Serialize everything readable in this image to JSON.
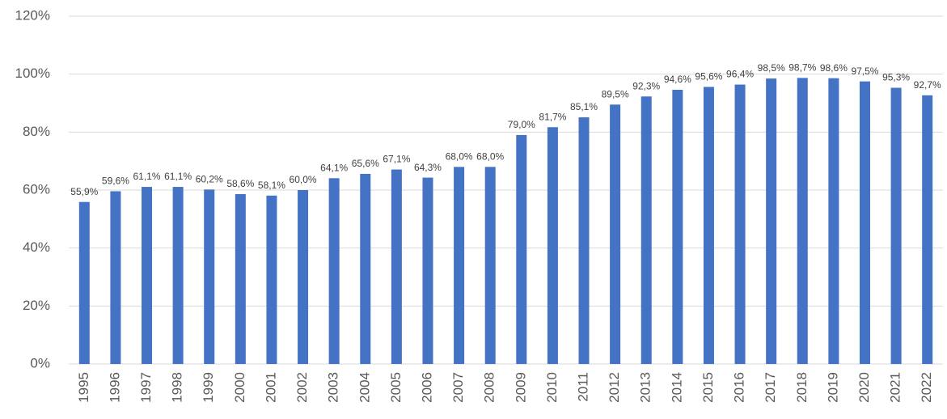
{
  "chart_data": {
    "type": "bar",
    "categories": [
      "1995",
      "1996",
      "1997",
      "1998",
      "1999",
      "2000",
      "2001",
      "2002",
      "2003",
      "2004",
      "2005",
      "2006",
      "2007",
      "2008",
      "2009",
      "2010",
      "2011",
      "2012",
      "2013",
      "2014",
      "2015",
      "2016",
      "2017",
      "2018",
      "2019",
      "2020",
      "2021",
      "2022"
    ],
    "values": [
      55.9,
      59.6,
      61.1,
      61.1,
      60.2,
      58.6,
      58.1,
      60.0,
      64.1,
      65.6,
      67.1,
      64.3,
      68.0,
      68.0,
      79.0,
      81.7,
      85.1,
      89.5,
      92.3,
      94.6,
      95.6,
      96.4,
      98.5,
      98.7,
      98.6,
      97.5,
      95.3,
      92.7
    ],
    "value_labels": [
      "55,9%",
      "59,6%",
      "61,1%",
      "61,1%",
      "60,2%",
      "58,6%",
      "58,1%",
      "60,0%",
      "64,1%",
      "65,6%",
      "67,1%",
      "64,3%",
      "68,0%",
      "68,0%",
      "79,0%",
      "81,7%",
      "85,1%",
      "89,5%",
      "92,3%",
      "94,6%",
      "95,6%",
      "96,4%",
      "98,5%",
      "98,7%",
      "98,6%",
      "97,5%",
      "95,3%",
      "92,7%"
    ],
    "color": "#4472c4",
    "ylim": [
      0,
      120
    ],
    "yticks": [
      {
        "value": 0,
        "label": "0%"
      },
      {
        "value": 20,
        "label": "20%"
      },
      {
        "value": 40,
        "label": "40%"
      },
      {
        "value": 60,
        "label": "60%"
      },
      {
        "value": 80,
        "label": "80%"
      },
      {
        "value": 100,
        "label": "100%"
      },
      {
        "value": 120,
        "label": "120%"
      }
    ],
    "grid": true
  }
}
